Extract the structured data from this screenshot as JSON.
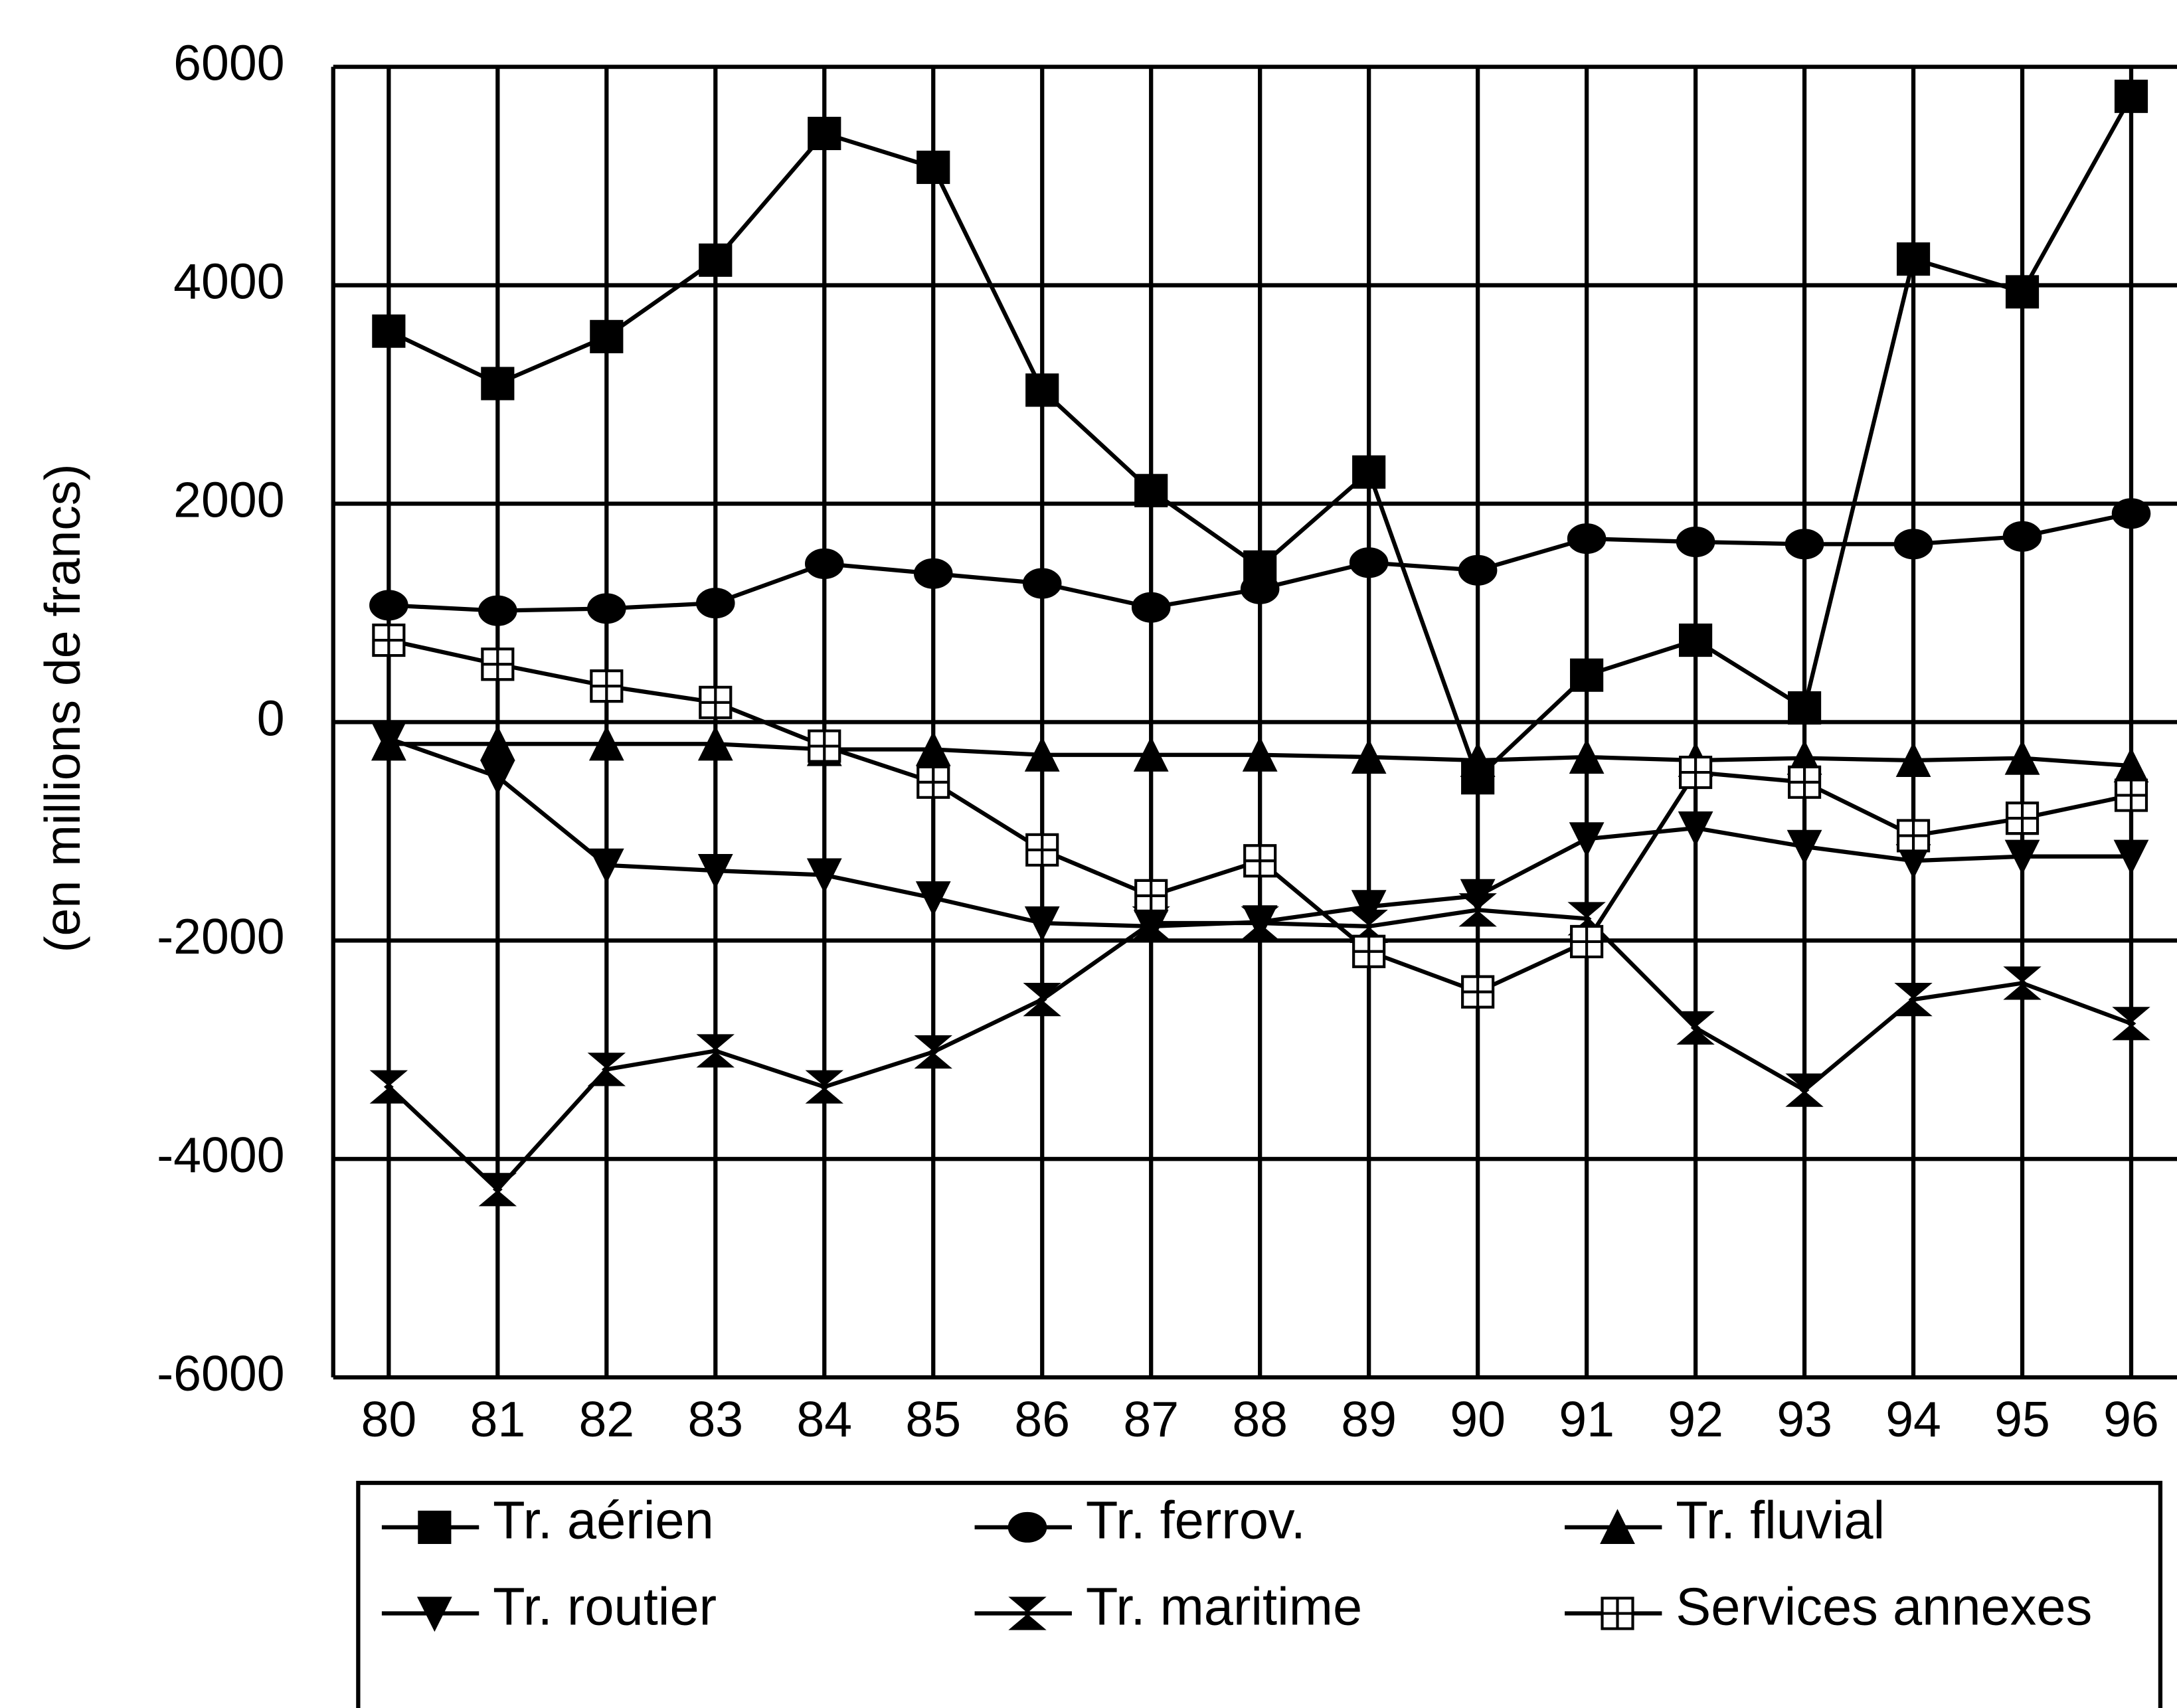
{
  "chart_data": {
    "type": "line",
    "y_label": "(en millions de francs)",
    "categories": [
      "80",
      "81",
      "82",
      "83",
      "84",
      "85",
      "86",
      "87",
      "88",
      "89",
      "90",
      "91",
      "92",
      "93",
      "94",
      "95",
      "96"
    ],
    "ylim": [
      -6000,
      6000
    ],
    "yticks": [
      6000,
      4000,
      2000,
      0,
      -2000,
      -4000,
      -6000
    ],
    "grid": true,
    "legend": "bottom",
    "series": [
      {
        "name": "Tr. aérien",
        "color": "#000000",
        "marker": "square",
        "values": [
          3580,
          3100,
          3530,
          4230,
          5390,
          5080,
          3040,
          2120,
          1420,
          2290,
          -510,
          430,
          750,
          130,
          4240,
          3940,
          5730
        ]
      },
      {
        "name": "Tr. ferrov.",
        "color": "#000000",
        "marker": "circle",
        "values": [
          1070,
          1020,
          1040,
          1090,
          1450,
          1360,
          1270,
          1050,
          1220,
          1460,
          1390,
          1680,
          1650,
          1630,
          1630,
          1700,
          1910
        ]
      },
      {
        "name": "Tr. fluvial",
        "color": "#000000",
        "marker": "triangle-up",
        "values": [
          -200,
          -200,
          -200,
          -200,
          -250,
          -250,
          -300,
          -300,
          -300,
          -320,
          -350,
          -320,
          -350,
          -330,
          -350,
          -330,
          -400
        ]
      },
      {
        "name": "Tr. routier",
        "color": "#000000",
        "marker": "triangle-down",
        "values": [
          -150,
          -500,
          -1310,
          -1360,
          -1400,
          -1610,
          -1840,
          -1870,
          -1830,
          -1690,
          -1590,
          -1070,
          -970,
          -1140,
          -1270,
          -1230,
          -1230
        ]
      },
      {
        "name": "Tr. maritime",
        "color": "#000000",
        "marker": "bowtie",
        "values": [
          -3340,
          -4280,
          -3180,
          -3010,
          -3340,
          -3020,
          -2540,
          -1840,
          -1840,
          -1870,
          -1720,
          -1800,
          -2800,
          -3370,
          -2540,
          -2390,
          -2760
        ]
      },
      {
        "name": "Services annexes",
        "color": "#000000",
        "marker": "square-open",
        "values": [
          750,
          530,
          330,
          180,
          -220,
          -550,
          -1170,
          -1590,
          -1270,
          -2100,
          -2470,
          -2010,
          -460,
          -550,
          -1040,
          -880,
          -670
        ]
      }
    ]
  }
}
